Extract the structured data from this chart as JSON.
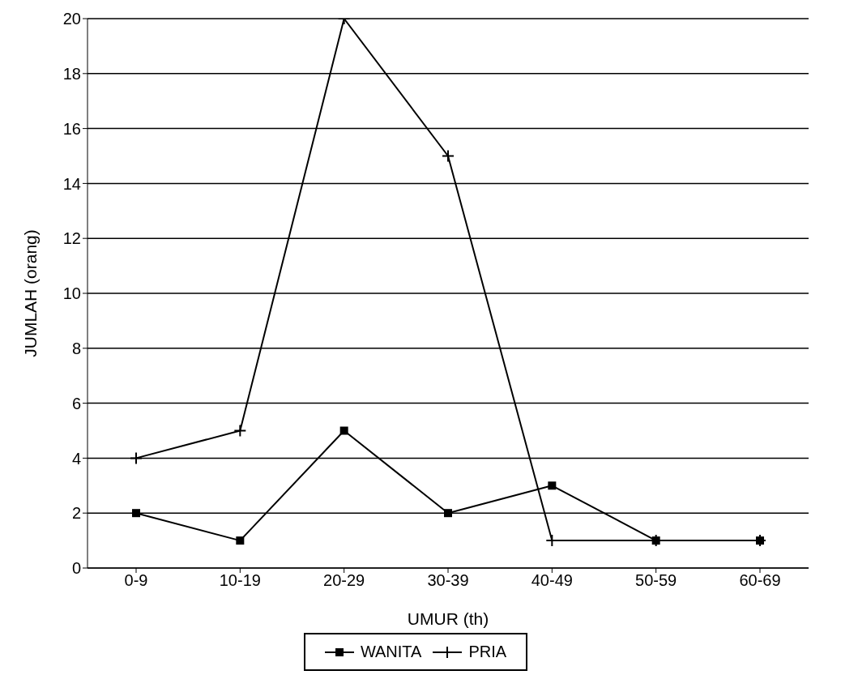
{
  "chart_data": {
    "type": "line",
    "xlabel": "UMUR (th)",
    "ylabel": "JUMLAH (orang)",
    "categories": [
      "0-9",
      "10-19",
      "20-29",
      "30-39",
      "40-49",
      "50-59",
      "60-69"
    ],
    "series": [
      {
        "name": "WANITA",
        "color": "#000000",
        "marker": "square",
        "values": [
          2,
          1,
          5,
          2,
          3,
          1,
          1
        ]
      },
      {
        "name": "PRIA",
        "color": "#000000",
        "marker": "cross",
        "values": [
          4,
          5,
          20,
          15,
          1,
          1,
          1
        ]
      }
    ],
    "ylim": [
      0,
      20
    ],
    "yticks": [
      0,
      2,
      4,
      6,
      8,
      10,
      12,
      14,
      16,
      18,
      20
    ],
    "grid": "y",
    "legend": "bottom",
    "line_style": "solid"
  }
}
